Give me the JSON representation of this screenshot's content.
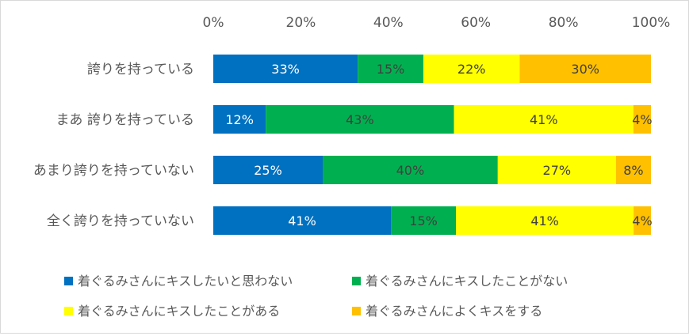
{
  "chart_data": {
    "type": "bar",
    "orientation": "horizontal",
    "stacked": "percent",
    "title": "",
    "xlabel": "",
    "ylabel": "",
    "xlim": [
      0,
      100
    ],
    "x_ticks": [
      "0%",
      "20%",
      "40%",
      "60%",
      "80%",
      "100%"
    ],
    "x_axis_position": "top",
    "grid": false,
    "legend_position": "bottom",
    "categories": [
      "誇りを持っている",
      "まあ 誇りを持っている",
      "あまり誇りを持っていない",
      "全く誇りを持っていない"
    ],
    "series": [
      {
        "name": "着ぐるみさんにキスしたいと思わない",
        "color": "#0070C0",
        "label_color": "#ffffff",
        "values": [
          33,
          12,
          25,
          41
        ],
        "labels": [
          "33%",
          "12%",
          "25%",
          "41%"
        ]
      },
      {
        "name": "着ぐるみさんにキスしたことがない",
        "color": "#00B050",
        "label_color": "#404040",
        "values": [
          15,
          43,
          40,
          15
        ],
        "labels": [
          "15%",
          "43%",
          "40%",
          "15%"
        ]
      },
      {
        "name": "着ぐるみさんにキスしたことがある",
        "color": "#FFFF00",
        "label_color": "#404040",
        "values": [
          22,
          41,
          27,
          41
        ],
        "labels": [
          "22%",
          "41%",
          "27%",
          "41%"
        ]
      },
      {
        "name": "着ぐるみさんによくキスをする",
        "color": "#FFC000",
        "label_color": "#404040",
        "values": [
          30,
          4,
          8,
          4
        ],
        "labels": [
          "30%",
          "4%",
          "8%",
          "4%"
        ]
      }
    ]
  }
}
